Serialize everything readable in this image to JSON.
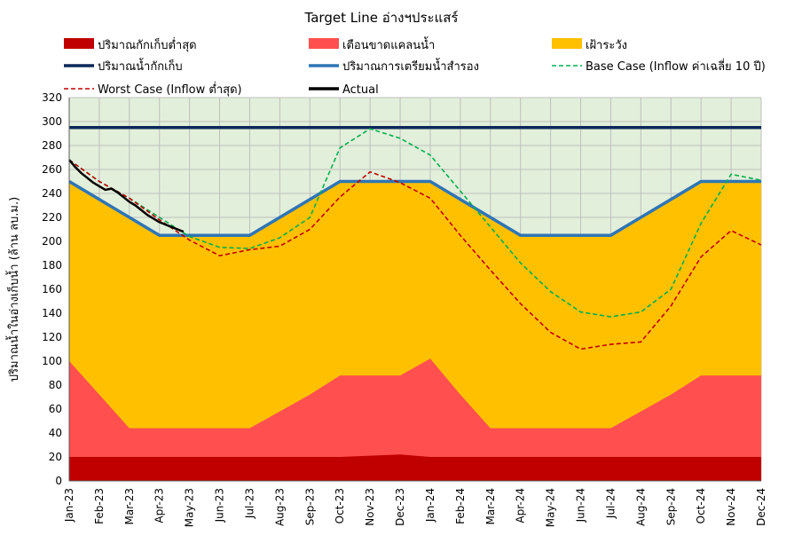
{
  "chart_data": {
    "type": "area",
    "title": "Target Line อ่างฯประแสร์",
    "ylabel": "ปริมาณน้ำในอ่างเก็บน้ำ (ล้าน ลบ.ม.)",
    "xlabel": "",
    "ylim": [
      0,
      320
    ],
    "y_ticks": [
      0,
      20,
      40,
      60,
      80,
      100,
      120,
      140,
      160,
      180,
      200,
      220,
      240,
      260,
      280,
      300,
      320
    ],
    "grid": true,
    "legend_position": "top",
    "categories": [
      "Jan-23",
      "Feb-23",
      "Mar-23",
      "Apr-23",
      "May-23",
      "Jun-23",
      "Jul-23",
      "Aug-23",
      "Sep-23",
      "Oct-23",
      "Nov-23",
      "Dec-23",
      "Jan-24",
      "Feb-24",
      "Mar-24",
      "Apr-24",
      "May-24",
      "Jun-24",
      "Jul-24",
      "Aug-24",
      "Sep-24",
      "Oct-24",
      "Nov-24",
      "Dec-24"
    ],
    "background_zone": {
      "color": "#e2efda",
      "from": 0,
      "to": 320
    },
    "areas": [
      {
        "name": "เฝ้าระวัง",
        "color": "#ffc000",
        "values": [
          250,
          235,
          220,
          205,
          205,
          205,
          205,
          220,
          235,
          250,
          250,
          250,
          250,
          235,
          220,
          205,
          205,
          205,
          205,
          220,
          235,
          250,
          250,
          250
        ]
      },
      {
        "name": "เตือนขาดแคลนน้ำ",
        "color": "#ff4f4f",
        "values": [
          100,
          72,
          44,
          44,
          44,
          44,
          44,
          58,
          72,
          88,
          88,
          88,
          102,
          72,
          44,
          44,
          44,
          44,
          44,
          58,
          72,
          88,
          88,
          88
        ]
      },
      {
        "name": "ปริมาณกักเก็บต่ำสุด",
        "color": "#c00000",
        "values": [
          20,
          20,
          20,
          20,
          20,
          20,
          20,
          20,
          20,
          20,
          21,
          22,
          20,
          20,
          20,
          20,
          20,
          20,
          20,
          20,
          20,
          20,
          20,
          20
        ]
      }
    ],
    "lines": [
      {
        "name": "ปริมาณน้ำกักเก็บ",
        "color": "#0b2858",
        "style": "solid",
        "values": [
          295,
          295,
          295,
          295,
          295,
          295,
          295,
          295,
          295,
          295,
          295,
          295,
          295,
          295,
          295,
          295,
          295,
          295,
          295,
          295,
          295,
          295,
          295,
          295
        ]
      },
      {
        "name": "ปริมาณการเตรียมน้ำสำรอง",
        "color": "#2e75b6",
        "style": "solid",
        "values": [
          250,
          235,
          220,
          205,
          205,
          205,
          205,
          220,
          235,
          250,
          250,
          250,
          250,
          235,
          220,
          205,
          205,
          205,
          205,
          220,
          235,
          250,
          250,
          250
        ]
      },
      {
        "name": "Base Case (Inflow ค่าเฉลี่ย 10 ปี)",
        "color": "#00b050",
        "style": "dashed",
        "values": [
          268,
          250,
          236,
          220,
          204,
          195,
          194,
          203,
          220,
          278,
          294,
          286,
          272,
          242,
          212,
          182,
          158,
          141,
          137,
          141,
          160,
          215,
          256,
          251
        ]
      },
      {
        "name": "Worst Case (Inflow ต่ำสุด)",
        "color": "#c00000",
        "style": "dashed",
        "values": [
          268,
          250,
          236,
          218,
          201,
          188,
          193,
          196,
          210,
          237,
          258,
          249,
          236,
          205,
          176,
          148,
          124,
          110,
          114,
          116,
          146,
          187,
          209,
          197
        ]
      },
      {
        "name": "Actual",
        "color": "#000000",
        "style": "solid",
        "x": [
          0,
          0.2,
          0.4,
          0.6,
          0.8,
          1.0,
          1.2,
          1.4,
          1.6,
          1.8,
          2.0,
          2.2,
          2.4,
          2.6,
          2.8,
          3.0,
          3.2,
          3.4,
          3.6,
          3.8
        ],
        "values": [
          268,
          262,
          257,
          253,
          249,
          246,
          243,
          244,
          241,
          237,
          233,
          230,
          226,
          222,
          219,
          216,
          214,
          212,
          210,
          208
        ]
      }
    ],
    "legend": [
      {
        "name": "ปริมาณกักเก็บต่ำสุด",
        "kind": "box",
        "color": "#c00000"
      },
      {
        "name": "เตือนขาดแคลนน้ำ",
        "kind": "box",
        "color": "#ff4f4f"
      },
      {
        "name": "เฝ้าระวัง",
        "kind": "box",
        "color": "#ffc000"
      },
      {
        "name": "ปริมาณน้ำกักเก็บ",
        "kind": "line",
        "color": "#0b2858"
      },
      {
        "name": "ปริมาณการเตรียมน้ำสำรอง",
        "kind": "line",
        "color": "#2e75b6"
      },
      {
        "name": "Base Case (Inflow ค่าเฉลี่ย 10 ปี)",
        "kind": "dash",
        "color": "#00b050"
      },
      {
        "name": "Worst Case (Inflow ต่ำสุด)",
        "kind": "dash",
        "color": "#c00000"
      },
      {
        "name": "Actual",
        "kind": "line",
        "color": "#000000"
      }
    ]
  }
}
